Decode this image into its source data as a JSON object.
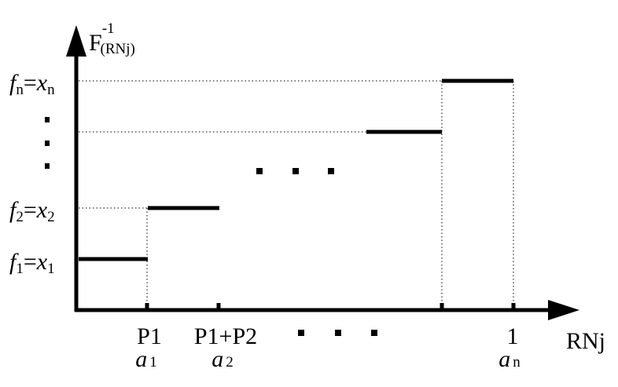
{
  "axes": {
    "y_label": {
      "base": "F",
      "sup": "-1",
      "sub": "(RNj)"
    },
    "x_label": "RNj"
  },
  "y_labels": [
    {
      "f": "f",
      "f_sub": "n",
      "eq": "=",
      "x": "x",
      "x_sub": "n"
    },
    {
      "f": "f",
      "f_sub": "2",
      "eq": "=",
      "x": "x",
      "x_sub": "2"
    },
    {
      "f": "f",
      "f_sub": "1",
      "eq": "=",
      "x": "x",
      "x_sub": "1"
    }
  ],
  "x_labels": [
    {
      "top": "P1",
      "a": "a",
      "a_sub": "1"
    },
    {
      "top": "P1+P2",
      "a": "a",
      "a_sub": "2"
    },
    {
      "top": "1",
      "a": "a",
      "a_sub": "n"
    }
  ]
}
